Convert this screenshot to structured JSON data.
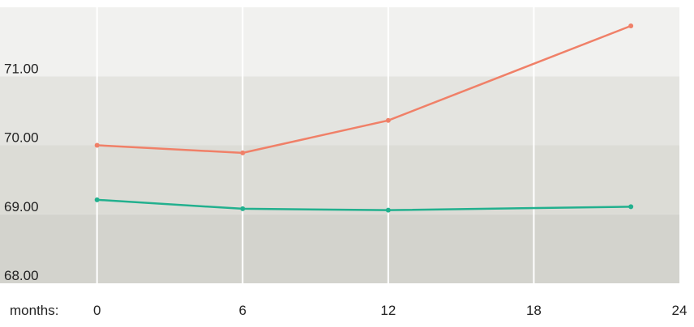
{
  "chart_data": {
    "type": "line",
    "x_axis_prefix": "months:",
    "x_ticks": [
      0,
      6,
      12,
      18,
      24
    ],
    "y_ticks": [
      "68.00",
      "69.00",
      "70.00",
      "71.00"
    ],
    "xlim": [
      -4,
      24
    ],
    "ylim": [
      68.0,
      72.0
    ],
    "grid": true,
    "legend": "none",
    "series": [
      {
        "color": "#f08068",
        "x": [
          0,
          6,
          12,
          22
        ],
        "y": [
          70.0,
          69.89,
          70.36,
          71.73
        ]
      },
      {
        "color": "#22b08e",
        "x": [
          0,
          6,
          12,
          22
        ],
        "y": [
          69.21,
          69.08,
          69.06,
          69.11
        ]
      }
    ],
    "band_colors": [
      "#d3d3cd",
      "#dcdcd6",
      "#e4e4e0",
      "#f1f1ef"
    ]
  }
}
